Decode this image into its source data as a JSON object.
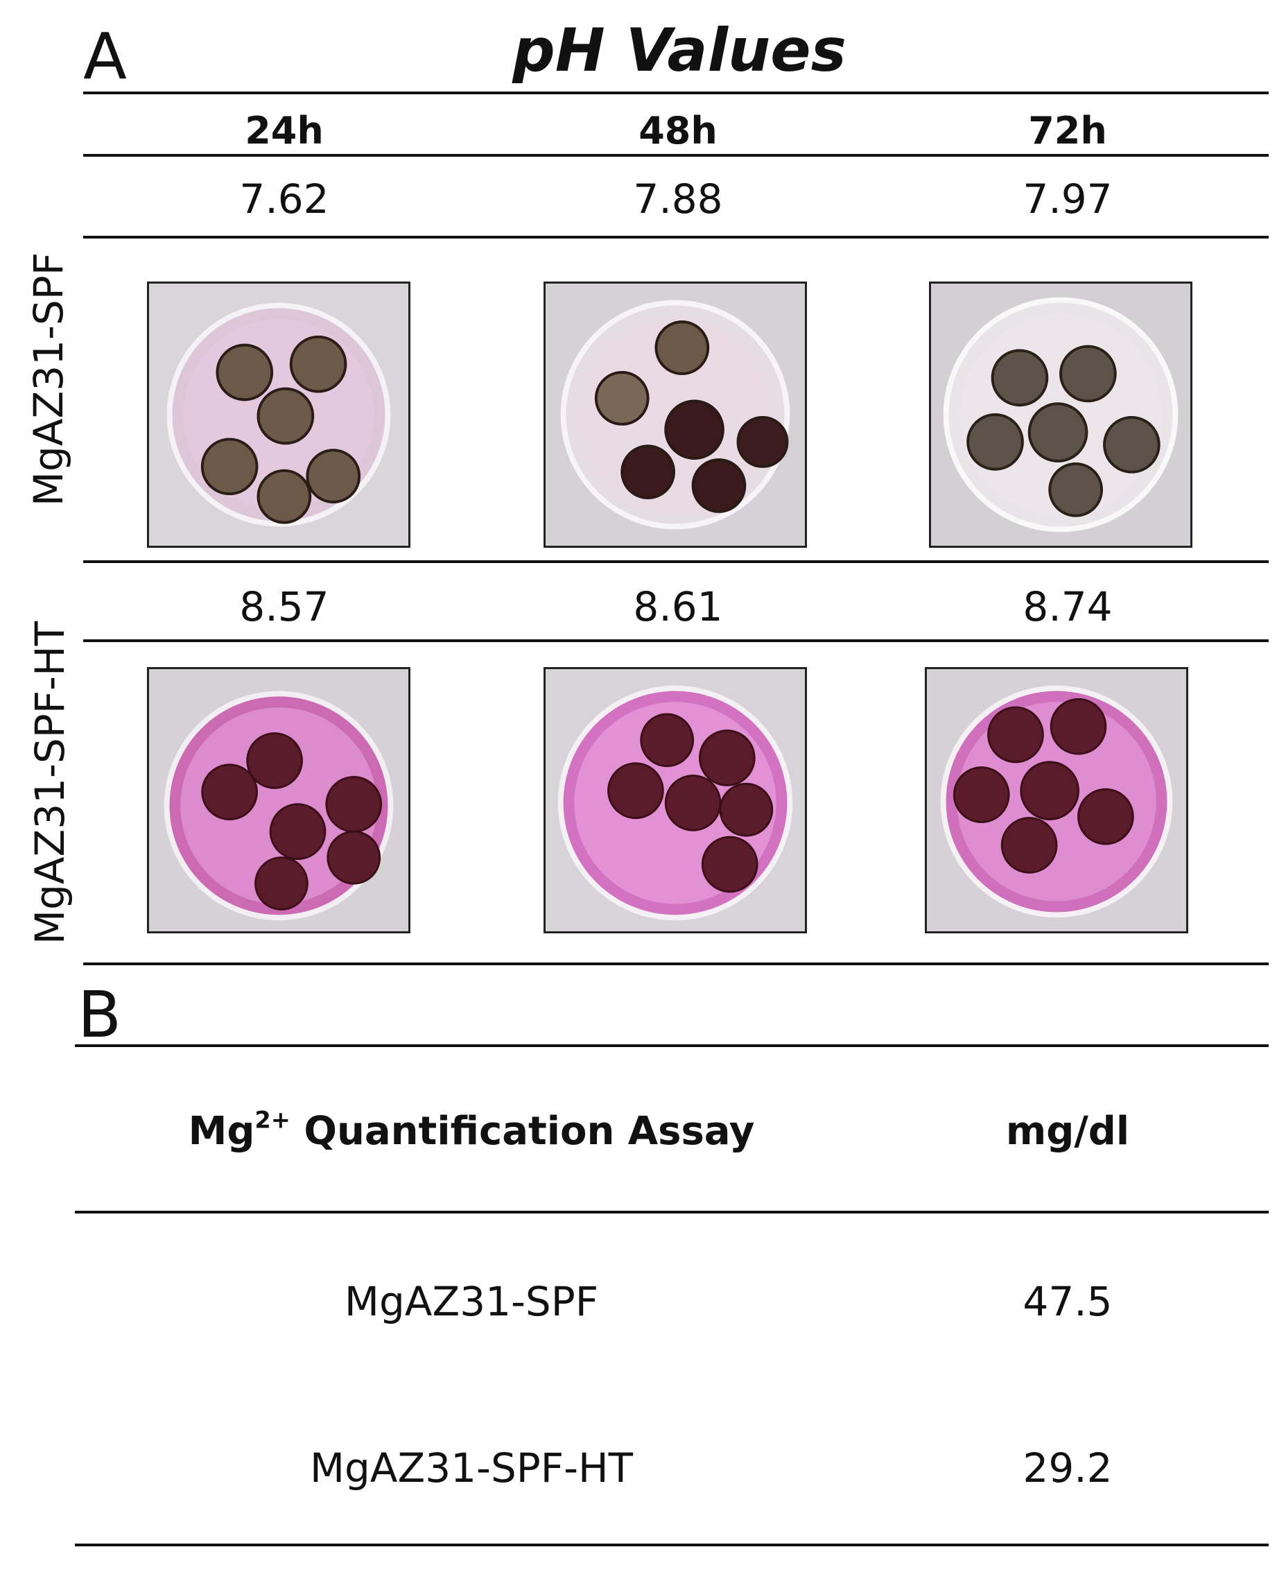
{
  "panel_a": {
    "letter": "A",
    "title": "pH Values",
    "time_headers": [
      "24h",
      "48h",
      "72h"
    ],
    "rows": [
      {
        "label": "MgAZ31-SPF",
        "values": [
          "7.62",
          "7.88",
          "7.97"
        ]
      },
      {
        "label": "MgAZ31-SPF-HT",
        "values": [
          "8.57",
          "8.61",
          "8.74"
        ]
      }
    ]
  },
  "panel_b": {
    "letter": "B",
    "header_main": "Mg",
    "header_sup": "2+",
    "header_rest": " Quantification Assay",
    "header_unit": "mg/dl",
    "rows": [
      {
        "sample": "MgAZ31-SPF",
        "value": "47.5"
      },
      {
        "sample": "MgAZ31-SPF-HT",
        "value": "29.2"
      }
    ]
  },
  "colors": {
    "spf_medium": "#e8cfe0",
    "ht_medium": "#d86bc0",
    "disk_dark": "#4a1a22",
    "disk_corroded": "#6b5a48"
  }
}
